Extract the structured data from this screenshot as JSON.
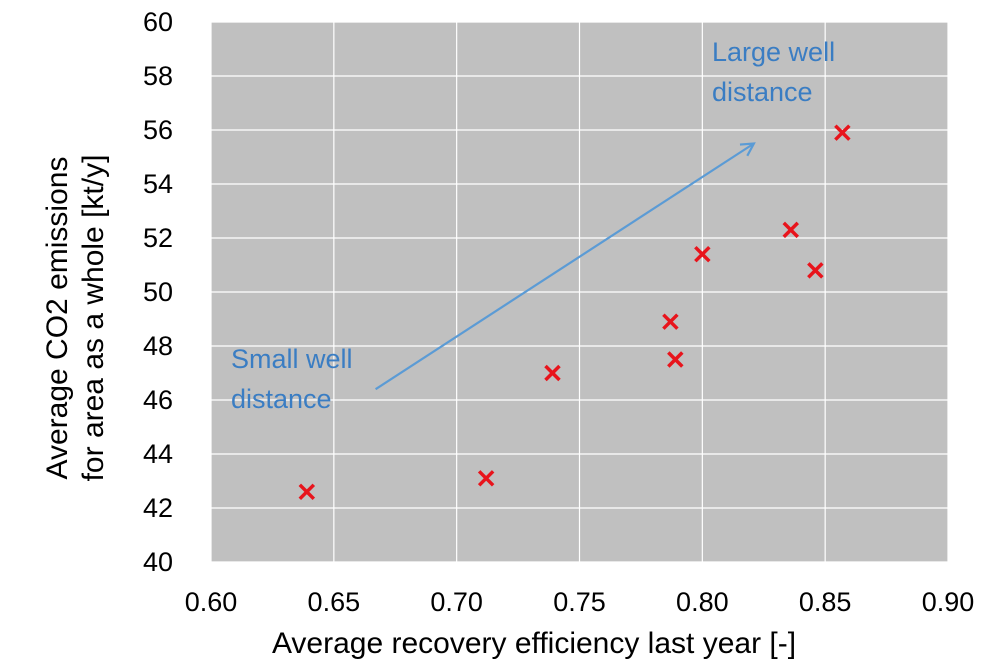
{
  "chart_data": {
    "type": "scatter",
    "xlabel": "Average recovery efficiency last year [-]",
    "ylabel_lines": [
      "Average CO2 emissions",
      "for area as a whole [kt/y]"
    ],
    "xlim": [
      0.6,
      0.9
    ],
    "ylim": [
      40,
      60
    ],
    "x_ticks": [
      "0.60",
      "0.65",
      "0.70",
      "0.75",
      "0.80",
      "0.85",
      "0.90"
    ],
    "y_ticks": [
      "40",
      "42",
      "44",
      "46",
      "48",
      "50",
      "52",
      "54",
      "56",
      "58",
      "60"
    ],
    "grid": true,
    "background": "#C0C0C0",
    "gridline_color": "#FFFFFF",
    "marker": "x",
    "marker_color": "#E8141C",
    "points": [
      {
        "x": 0.639,
        "y": 42.6
      },
      {
        "x": 0.712,
        "y": 43.1
      },
      {
        "x": 0.739,
        "y": 47.0
      },
      {
        "x": 0.787,
        "y": 48.9
      },
      {
        "x": 0.789,
        "y": 47.5
      },
      {
        "x": 0.8,
        "y": 51.4
      },
      {
        "x": 0.836,
        "y": 52.3
      },
      {
        "x": 0.846,
        "y": 50.8
      },
      {
        "x": 0.857,
        "y": 55.9
      }
    ],
    "annotations": [
      {
        "lines": [
          "Large well",
          "distance"
        ],
        "color": "#3A7DC3"
      },
      {
        "lines": [
          "Small well",
          "distance"
        ],
        "color": "#3A7DC3"
      }
    ],
    "arrow": {
      "from": [
        0.667,
        46.4
      ],
      "to": [
        0.821,
        55.5
      ],
      "color": "#5B9BD5"
    }
  }
}
